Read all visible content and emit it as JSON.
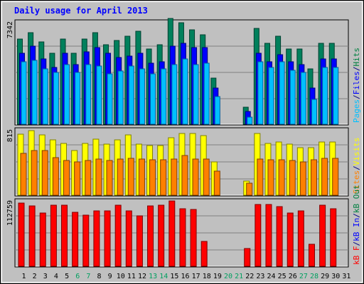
{
  "chart_data": {
    "type": "bar",
    "title": "Daily usage for April 2013",
    "days": [
      "1",
      "2",
      "3",
      "4",
      "5",
      "6",
      "7",
      "8",
      "9",
      "10",
      "11",
      "12",
      "13",
      "14",
      "15",
      "16",
      "17",
      "18",
      "19",
      "20",
      "21",
      "22",
      "23",
      "24",
      "25",
      "26",
      "27",
      "28",
      "29",
      "30",
      "31"
    ],
    "weekend_days": [
      "6",
      "7",
      "13",
      "14",
      "20",
      "21",
      "27",
      "28"
    ],
    "panels": [
      {
        "id": "hits_files_pages",
        "max_label": "7342",
        "ymax": 7342,
        "series": [
          {
            "name": "Hits",
            "values": [
              6100,
              6600,
              5900,
              5100,
              6100,
              5100,
              6100,
              6600,
              5700,
              6000,
              6300,
              6700,
              5400,
              5700,
              7600,
              7300,
              6800,
              6400,
              3300,
              0,
              0,
              1200,
              6900,
              5800,
              6300,
              5400,
              5400,
              4000,
              5800,
              5800,
              0
            ]
          },
          {
            "name": "Files",
            "values": [
              5100,
              5600,
              4700,
              4100,
              5100,
              4300,
              5200,
              5500,
              5100,
              4800,
              4900,
              5100,
              4400,
              4500,
              5600,
              5800,
              5500,
              5500,
              2600,
              0,
              0,
              900,
              5100,
              4500,
              5000,
              4500,
              4300,
              2600,
              4700,
              4700,
              0
            ]
          },
          {
            "name": "Pages",
            "values": [
              4500,
              4600,
              4000,
              3700,
              4300,
              3700,
              4300,
              4200,
              3600,
              3800,
              4200,
              4000,
              3600,
              4000,
              4300,
              4700,
              4300,
              4400,
              2000,
              0,
              0,
              500,
              4500,
              4100,
              4500,
              3900,
              3700,
              1800,
              4100,
              4100,
              0
            ]
          }
        ]
      },
      {
        "id": "visits_sites",
        "max_label": "815",
        "ymax": 815,
        "series": [
          {
            "name": "Visits",
            "values": [
              760,
              810,
              750,
              690,
              650,
              560,
              650,
              700,
              640,
              690,
              750,
              640,
              620,
              620,
              720,
              770,
              770,
              740,
              420,
              0,
              0,
              180,
              770,
              650,
              660,
              640,
              590,
              590,
              660,
              660,
              0
            ]
          },
          {
            "name": "Sites",
            "values": [
              520,
              560,
              560,
              470,
              430,
              420,
              430,
              450,
              430,
              450,
              460,
              450,
              440,
              440,
              450,
              500,
              450,
              450,
              300,
              0,
              0,
              150,
              450,
              440,
              440,
              430,
              420,
              440,
              460,
              460,
              0
            ]
          }
        ]
      },
      {
        "id": "kbf_kbin_kbout",
        "max_label": "112759",
        "ymax": 112759,
        "series": [
          {
            "name": "kB F",
            "values": [
              109000,
              104000,
              92000,
              105000,
              105000,
              93000,
              88000,
              95000,
              96000,
              106000,
              96000,
              87000,
              104000,
              105000,
              113000,
              99000,
              98000,
              43000,
              0,
              0,
              0,
              31000,
              107000,
              107000,
              103000,
              92000,
              95000,
              38000,
              105000,
              99000,
              0
            ]
          },
          {
            "name": "kB In",
            "values": [
              0,
              0,
              0,
              0,
              0,
              0,
              0,
              0,
              0,
              0,
              0,
              0,
              0,
              0,
              0,
              0,
              0,
              0,
              0,
              0,
              0,
              0,
              0,
              0,
              0,
              0,
              0,
              0,
              0,
              0,
              0
            ]
          },
          {
            "name": "kB Out",
            "values": [
              0,
              0,
              0,
              0,
              0,
              0,
              0,
              0,
              0,
              0,
              0,
              0,
              0,
              0,
              0,
              0,
              0,
              0,
              0,
              0,
              0,
              0,
              0,
              0,
              0,
              0,
              0,
              0,
              0,
              0,
              0
            ]
          }
        ]
      }
    ],
    "legend_right": [
      {
        "panel": "hits_files_pages",
        "parts": [
          {
            "text": "Pages",
            "color": "#00c0ff"
          },
          {
            "text": "/",
            "color": "#000080"
          },
          {
            "text": "Files",
            "color": "#0000ff"
          },
          {
            "text": "/",
            "color": "#000080"
          },
          {
            "text": "Hits",
            "color": "#008040"
          }
        ]
      },
      {
        "panel": "visits_sites",
        "parts": [
          {
            "text": "Sites",
            "color": "#ff8000"
          },
          {
            "text": "/",
            "color": "#000080"
          },
          {
            "text": "Visits",
            "color": "#ffff00"
          }
        ]
      },
      {
        "panel": "kbf_kbin_kbout",
        "parts": [
          {
            "text": "kB F",
            "color": "#ff0000"
          },
          {
            "text": "/",
            "color": "#000080"
          },
          {
            "text": "kB In",
            "color": "#0000ff"
          },
          {
            "text": "/",
            "color": "#000080"
          },
          {
            "text": "kB Out",
            "color": "#008040"
          }
        ]
      }
    ],
    "colors": {
      "background": "#c0c0c0",
      "frame": "#ffffff",
      "title": "#0000ff",
      "gridline": "#808080",
      "weekday_label": "#000000",
      "weekend_label": "#00a060",
      "Hits": "#00805c",
      "Files": "#0000ff",
      "Pages": "#00c0ff",
      "Visits": "#ffff00",
      "Sites": "#ff8000",
      "kB F": "#ff0000",
      "kB In": "#0000ff",
      "kB Out": "#008040"
    }
  }
}
